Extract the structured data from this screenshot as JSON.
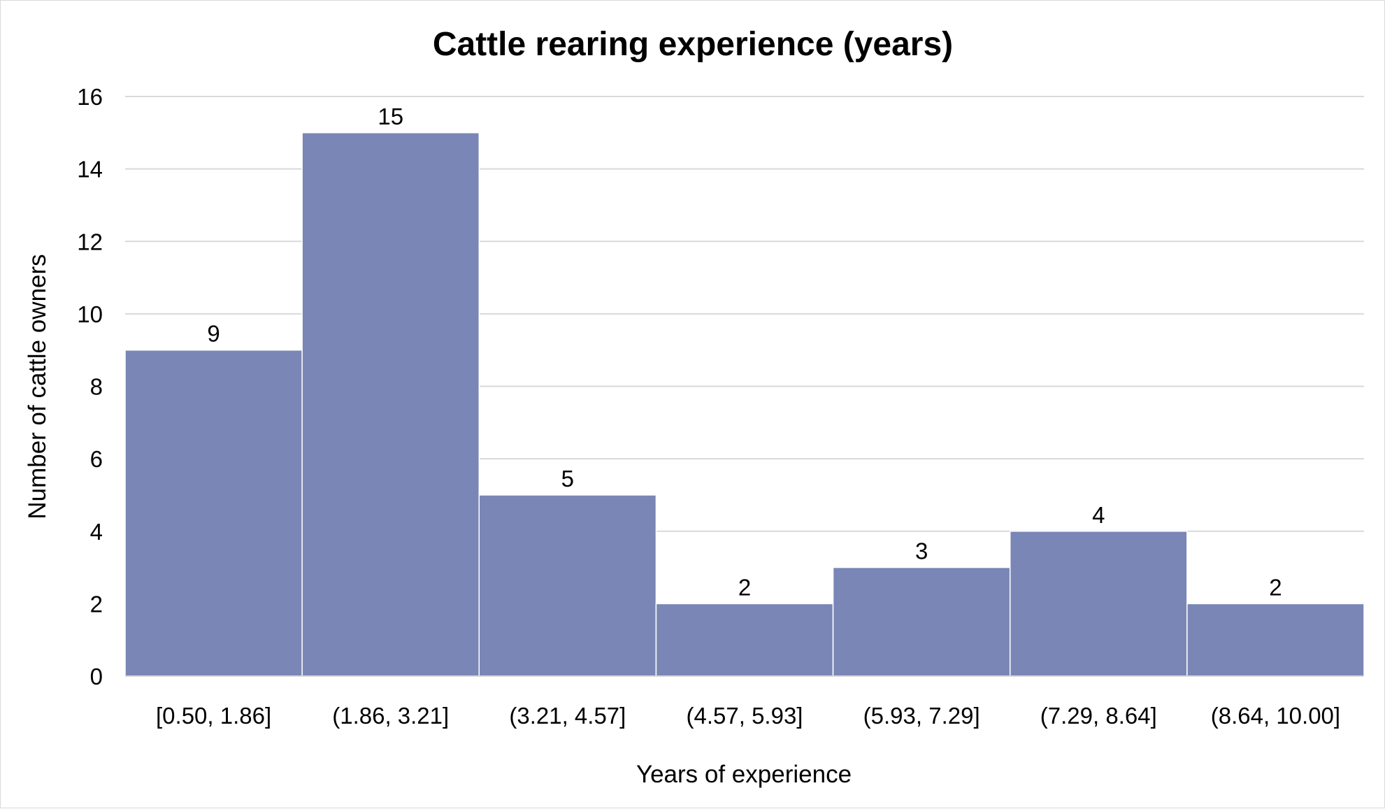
{
  "chart_data": {
    "type": "bar",
    "title": "Cattle rearing experience (years)",
    "xlabel": "Years of experience",
    "ylabel": "Number of cattle owners",
    "categories": [
      "[0.50, 1.86]",
      "(1.86, 3.21]",
      "(3.21, 4.57]",
      "(4.57, 5.93]",
      "(5.93, 7.29]",
      "(7.29, 8.64]",
      "(8.64, 10.00]"
    ],
    "values": [
      9,
      15,
      5,
      2,
      3,
      4,
      2
    ],
    "ylim": [
      0,
      16
    ],
    "yticks": [
      0,
      2,
      4,
      6,
      8,
      10,
      12,
      14,
      16
    ],
    "data_labels": true,
    "grid": true,
    "bar_color": "#7a86b5",
    "gridline_color": "#d9d9d9",
    "legend": "none"
  }
}
